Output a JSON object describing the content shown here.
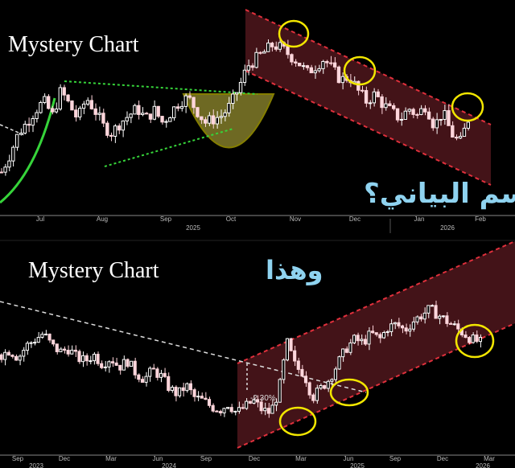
{
  "chart_data": [
    {
      "type": "candlestick",
      "title": "Mystery Chart",
      "annotation_text": "ما هذا الرسم البياني؟",
      "x_tick_labels": [
        "Jul",
        "Aug",
        "Sep",
        "Oct",
        "Nov",
        "Dec",
        "Jan",
        "Feb"
      ],
      "year_labels": [
        "2025",
        "2026"
      ],
      "closes_relative": [
        20,
        30,
        42,
        48,
        55,
        60,
        52,
        66,
        58,
        50,
        62,
        55,
        46,
        42,
        48,
        52,
        56,
        50,
        55,
        48,
        54,
        60,
        62,
        55,
        48,
        50,
        52,
        58,
        68,
        80,
        84,
        88,
        92,
        90,
        86,
        82,
        76,
        80,
        84,
        78,
        72,
        74,
        66,
        60,
        64,
        58,
        54,
        50,
        56,
        52,
        58,
        46,
        54,
        42,
        36,
        50
      ],
      "overlays": [
        "green-curve",
        "green-dotted-triangle",
        "yellow-cup",
        "red-descending-channel",
        "yellow-circles-3"
      ]
    },
    {
      "type": "candlestick",
      "title": "Mystery Chart",
      "annotation_text": "وهذا",
      "x_tick_labels": [
        "Sep",
        "Dec",
        "Mar",
        "Jun",
        "Sep",
        "Dec",
        "Mar",
        "Jun",
        "Sep",
        "Dec",
        "Mar"
      ],
      "year_labels": [
        "2023",
        "2024",
        "2025",
        "2026"
      ],
      "closes_relative": [
        52,
        55,
        50,
        58,
        62,
        66,
        58,
        54,
        56,
        50,
        48,
        52,
        46,
        50,
        44,
        48,
        40,
        36,
        42,
        38,
        30,
        26,
        32,
        24,
        22,
        18,
        16,
        20,
        14,
        18,
        22,
        16,
        14,
        28,
        60,
        44,
        40,
        24,
        30,
        36,
        46,
        56,
        62,
        60,
        66,
        62,
        70,
        72,
        68,
        74,
        78,
        82,
        78,
        74,
        70,
        66,
        62,
        60
      ],
      "percent_label": "-2.30%",
      "overlays": [
        "white-dashed-trendline",
        "red-ascending-channel",
        "yellow-circles-3"
      ]
    }
  ],
  "colors": {
    "up": "#ffffff",
    "down": "#ffd6dc",
    "channel": "#e0303c",
    "highlight": "#f2e600",
    "trend": "#36d43a",
    "arabic": "#8fd3f0"
  }
}
